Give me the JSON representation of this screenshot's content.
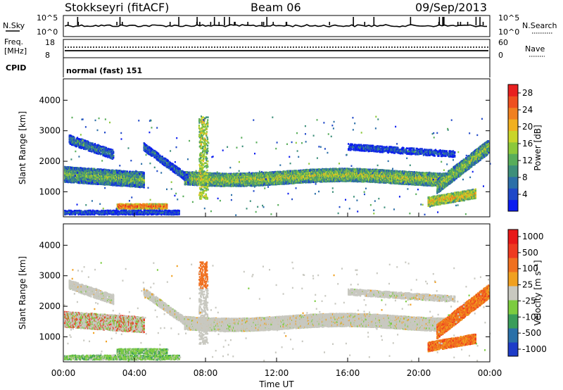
{
  "header": {
    "title_left": "Stokkseyri (fitACF)",
    "title_center": "Beam 06",
    "title_right": "09/Sep/2013"
  },
  "top_panels": {
    "nsky_label": "N.Sky",
    "nsky_ticks": [
      "10^5",
      "10^0"
    ],
    "nsearch_label": "N.Search",
    "freq_label_1": "Freq.",
    "freq_label_2": "[MHz]",
    "freq_ticks": [
      "18",
      "8"
    ],
    "nave_label": "Nave",
    "nave_ticks": [
      "60",
      "0"
    ],
    "cpid_label": "CPID",
    "cpid_text": "normal (fast) 151"
  },
  "chart_data": [
    {
      "type": "heatmap",
      "name": "power",
      "ylabel": "Slant Range [km]",
      "yticks": [
        1000,
        2000,
        3000,
        4000
      ],
      "ylim": [
        180,
        4700
      ],
      "xlim": [
        0,
        24
      ],
      "xticks": [
        "00:00",
        "04:00",
        "08:00",
        "12:00",
        "16:00",
        "20:00",
        "00:00"
      ],
      "colorbar": {
        "label": "Power [dB]",
        "ticks": [
          "4",
          "8",
          "12",
          "16",
          "20",
          "24",
          "28"
        ],
        "colors": [
          "#0b1cf0",
          "#1f48c8",
          "#2c6fa8",
          "#3d8f7a",
          "#58ad5a",
          "#8cc83a",
          "#c9d52a",
          "#f0b020",
          "#f08020",
          "#ee5020",
          "#e82020"
        ]
      }
    },
    {
      "type": "heatmap",
      "name": "velocity",
      "ylabel": "Slant Range [km]",
      "yticks": [
        1000,
        2000,
        3000,
        4000
      ],
      "ylim": [
        180,
        4700
      ],
      "xlim": [
        0,
        24
      ],
      "xticks": [
        "00:00",
        "04:00",
        "08:00",
        "12:00",
        "16:00",
        "20:00",
        "00:00"
      ],
      "xlabel": "Time UT",
      "colorbar": {
        "label": "Velocity [m s⁻¹]",
        "ticks": [
          "1000",
          "500",
          "100",
          "25",
          "-25",
          "-100",
          "-500",
          "-1000"
        ],
        "colors": [
          "#1e3cc8",
          "#2a70a8",
          "#3a9d5a",
          "#7ccc40",
          "#c8c8c0",
          "#f0a020",
          "#f07020",
          "#ee3a20",
          "#e81818"
        ]
      }
    }
  ]
}
